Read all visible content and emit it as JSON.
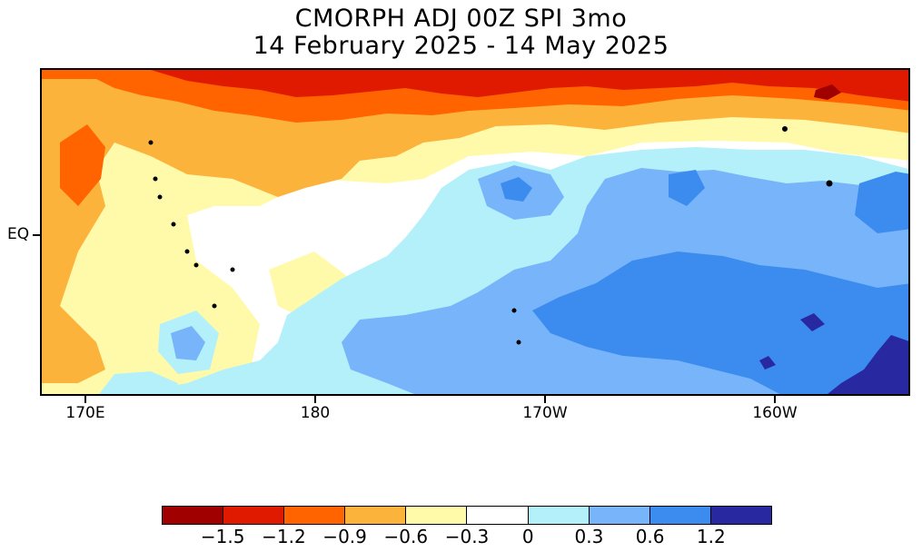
{
  "title": {
    "line1": "CMORPH ADJ 00Z SPI 3mo",
    "line2": "14 February 2025 - 14 May 2025"
  },
  "axes": {
    "x_ticks": [
      "170E",
      "180",
      "170W",
      "160W"
    ],
    "y_ticks": [
      "EQ"
    ]
  },
  "legend": {
    "colors": [
      "#a00000",
      "#e01a00",
      "#ff6400",
      "#fcb33c",
      "#fffaaa",
      "#ffffff",
      "#b4f0fa",
      "#78b4fa",
      "#3c8cf0",
      "#2828a0"
    ],
    "labels": [
      "-1.5",
      "-1.2",
      "-0.9",
      "-0.6",
      "-0.3",
      "0",
      "0.3",
      "0.6",
      "1.2"
    ]
  },
  "map_regions": {
    "palette": {
      "very_dry": "#a00000",
      "dry2": "#e01a00",
      "dry3": "#ff6400",
      "dry4": "#fcb33c",
      "dry5": "#fffaaa",
      "neutral": "#ffffff",
      "wet1": "#b4f0fa",
      "wet2": "#78b4fa",
      "wet3": "#3c8cf0",
      "wet4": "#2828a0"
    }
  }
}
